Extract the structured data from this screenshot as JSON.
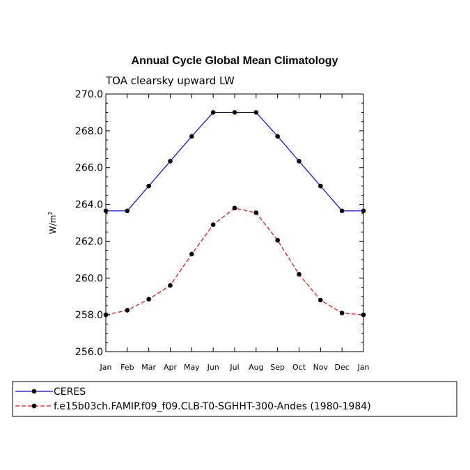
{
  "chart_data": {
    "type": "line",
    "title": "Annual Cycle Global Mean Climatology",
    "subtitle": "TOA clearsky upward LW",
    "xlabel": "",
    "ylabel_main": "W/m",
    "ylabel_sup": "2",
    "categories": [
      "Jan",
      "Feb",
      "Mar",
      "Apr",
      "May",
      "Jun",
      "Jul",
      "Aug",
      "Sep",
      "Oct",
      "Nov",
      "Dec",
      "Jan"
    ],
    "ylim": [
      256.0,
      270.0
    ],
    "yticks": [
      256.0,
      258.0,
      260.0,
      262.0,
      264.0,
      266.0,
      268.0,
      270.0
    ],
    "ytick_labels": [
      "256.0",
      "258.0",
      "260.0",
      "262.0",
      "264.0",
      "266.0",
      "268.0",
      "270.0"
    ],
    "series": [
      {
        "name": "CERES",
        "color": "#0000ff",
        "dash": "solid",
        "values": [
          263.65,
          263.65,
          265.0,
          266.35,
          267.7,
          269.0,
          269.0,
          269.0,
          267.7,
          266.35,
          265.0,
          263.65,
          263.65
        ]
      },
      {
        "name": "f.e15b03ch.FAMIP.f09_f09.CLB-T0-SGHHT-300-Andes (1980-1984)",
        "color": "#ff0000",
        "dash": "dashed",
        "values": [
          258.0,
          258.25,
          258.85,
          259.6,
          261.3,
          262.9,
          263.8,
          263.55,
          262.05,
          260.2,
          258.8,
          258.1,
          258.0
        ]
      }
    ],
    "legend_position": "bottom"
  }
}
